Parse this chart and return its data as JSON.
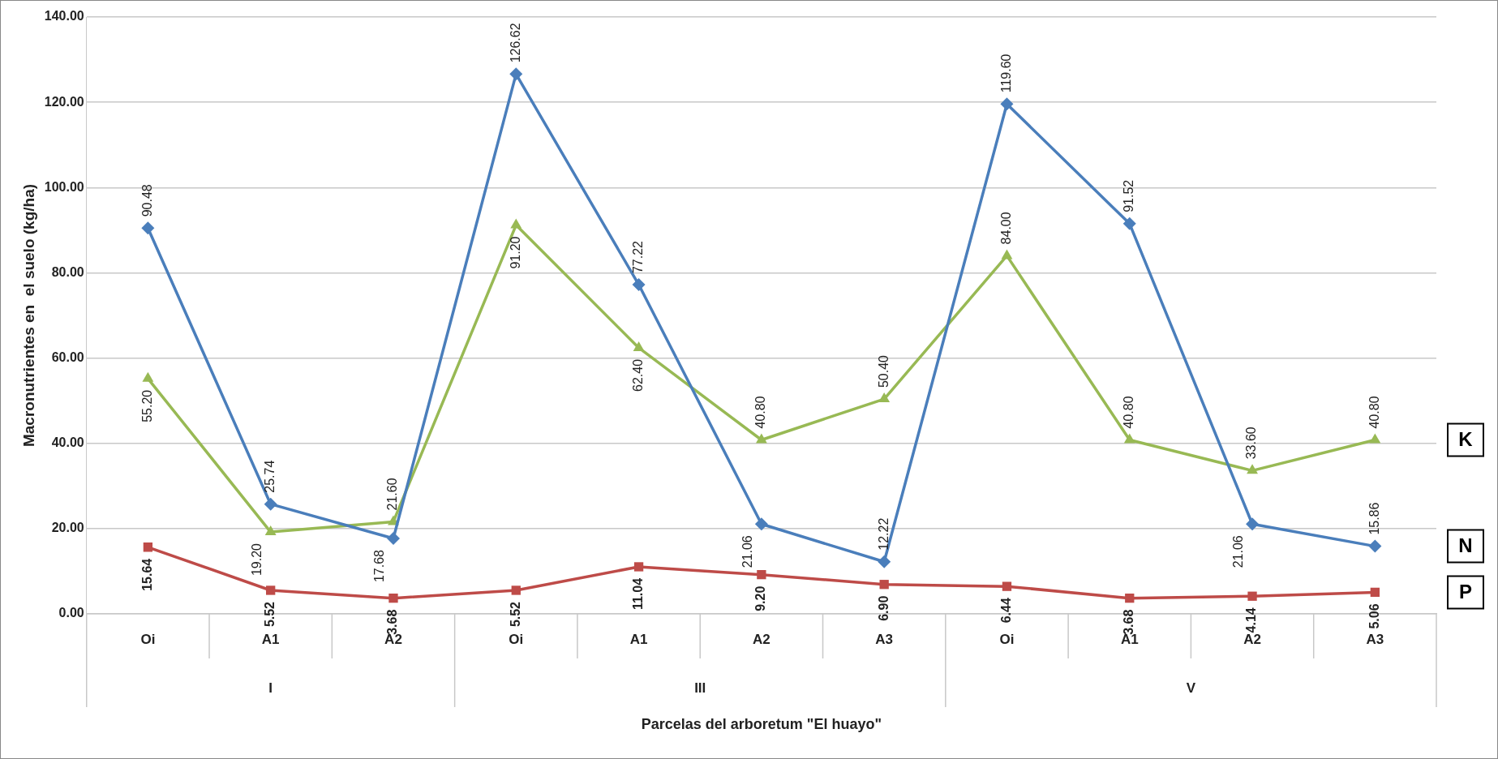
{
  "chart_data": {
    "type": "line",
    "xlabel": "Parcelas del arboretum \"El huayo\"",
    "ylabel": "Macronutrientes en  el suelo (kg/ha)",
    "categories": [
      "Oi",
      "A1",
      "A2",
      "Oi",
      "A1",
      "A2",
      "A3",
      "Oi",
      "A1",
      "A2",
      "A3"
    ],
    "series": [
      {
        "name": "N",
        "color": "#4a7ebb",
        "marker": "diamond",
        "values": [
          90.48,
          25.74,
          17.68,
          126.62,
          77.22,
          21.06,
          12.22,
          119.6,
          91.52,
          21.06,
          15.86
        ],
        "value_labels": [
          "90.48",
          "25.74",
          "17.68",
          "126.62",
          "77.22",
          "21.06",
          "12.22",
          "119.60",
          "91.52",
          "21.06",
          "15.86"
        ]
      },
      {
        "name": "P",
        "color": "#be4b48",
        "marker": "square",
        "values": [
          15.64,
          5.52,
          3.68,
          5.52,
          11.04,
          9.2,
          6.9,
          6.44,
          3.68,
          4.14,
          5.06
        ],
        "value_labels": [
          "15.64",
          "5.52",
          "3.68",
          "5.52",
          "11.04",
          "9.20",
          "6.90",
          "6.44",
          "3.68",
          "4.14",
          "5.06"
        ]
      },
      {
        "name": "K",
        "color": "#98b954",
        "marker": "triangle",
        "values": [
          55.2,
          19.2,
          21.6,
          91.2,
          62.4,
          40.8,
          50.4,
          84.0,
          40.8,
          33.6,
          40.8
        ],
        "value_labels": [
          "55.20",
          "19.20",
          "21.60",
          "91.20",
          "62.40",
          "40.80",
          "50.40",
          "84.00",
          "40.80",
          "33.60",
          "40.80"
        ]
      }
    ],
    "ylim": [
      0,
      140
    ],
    "yticks": [
      {
        "value": 0,
        "label": "0.00"
      },
      {
        "value": 20,
        "label": "20.00"
      },
      {
        "value": 40,
        "label": "40.00"
      },
      {
        "value": 60,
        "label": "60.00"
      },
      {
        "value": 80,
        "label": "80.00"
      },
      {
        "value": 100,
        "label": "100.00"
      },
      {
        "value": 120,
        "label": "120.00"
      },
      {
        "value": 140,
        "label": "140.00"
      }
    ],
    "grid": "y",
    "legend": false,
    "line_style": "solid",
    "annotations": [
      "I",
      "III",
      "V"
    ]
  }
}
